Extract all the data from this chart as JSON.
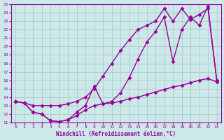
{
  "xlabel": "Windchill (Refroidissement éolien,°C)",
  "bg_color": "#cce8e8",
  "grid_color": "#aacccc",
  "line_color": "#990099",
  "xlim": [
    -0.5,
    23.5
  ],
  "ylim": [
    11,
    25
  ],
  "xticks": [
    0,
    1,
    2,
    3,
    4,
    5,
    6,
    7,
    8,
    9,
    10,
    11,
    12,
    13,
    14,
    15,
    16,
    17,
    18,
    19,
    20,
    21,
    22,
    23
  ],
  "yticks": [
    11,
    12,
    13,
    14,
    15,
    16,
    17,
    18,
    19,
    20,
    21,
    22,
    23,
    24,
    25
  ],
  "line1_x": [
    0,
    1,
    2,
    3,
    4,
    5,
    6,
    7,
    8,
    9,
    10,
    11,
    12,
    13,
    14,
    15,
    16,
    17,
    18,
    19,
    20,
    21,
    22,
    23
  ],
  "line1_y": [
    13.5,
    13.3,
    12.2,
    12.0,
    11.2,
    11.1,
    11.3,
    12.2,
    13.0,
    15.3,
    13.2,
    13.5,
    14.5,
    16.3,
    18.5,
    20.5,
    21.8,
    23.5,
    18.2,
    22.0,
    23.5,
    22.5,
    24.8,
    16.0
  ],
  "line2_x": [
    0,
    1,
    2,
    3,
    4,
    5,
    6,
    7,
    8,
    9,
    10,
    11,
    12,
    13,
    14,
    15,
    16,
    17,
    18,
    19,
    20,
    21,
    22,
    23
  ],
  "line2_y": [
    13.5,
    13.3,
    13.0,
    13.0,
    13.0,
    13.0,
    13.2,
    13.5,
    14.0,
    15.0,
    16.5,
    18.0,
    19.5,
    20.8,
    22.0,
    22.5,
    23.0,
    24.5,
    23.0,
    24.5,
    23.2,
    23.8,
    24.5,
    16.0
  ],
  "line3_x": [
    0,
    1,
    2,
    3,
    4,
    5,
    6,
    7,
    8,
    9,
    10,
    11,
    12,
    13,
    14,
    15,
    16,
    17,
    18,
    19,
    20,
    21,
    22,
    23
  ],
  "line3_y": [
    13.5,
    13.3,
    12.2,
    12.0,
    11.2,
    11.1,
    11.3,
    11.8,
    12.5,
    13.0,
    13.2,
    13.3,
    13.5,
    13.8,
    14.0,
    14.3,
    14.6,
    14.9,
    15.2,
    15.4,
    15.7,
    16.0,
    16.2,
    15.8
  ],
  "marker": "D",
  "marker_size": 2.5,
  "linewidth": 1.0
}
